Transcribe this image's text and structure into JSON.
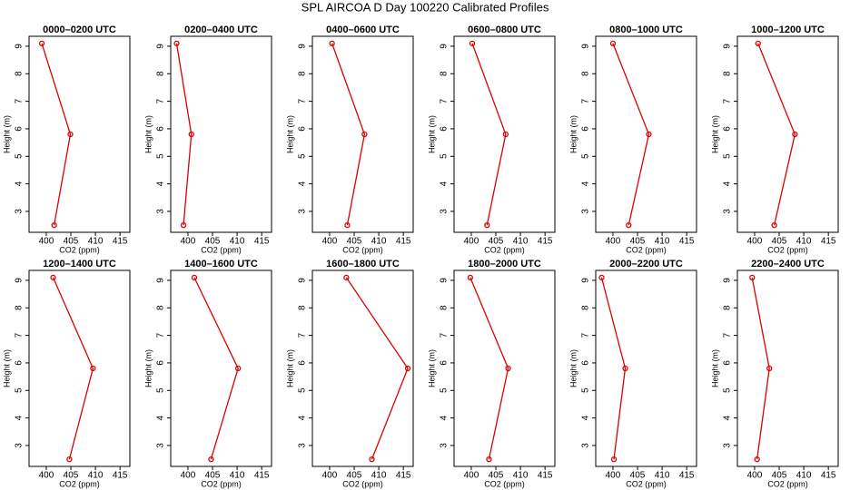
{
  "title": "SPL AIRCOA D  Day 100220  Calibrated Profiles",
  "chart_data": [
    {
      "type": "line",
      "title": "0000–0200 UTC",
      "xlabel": "CO2 (ppm)",
      "ylabel": "Height (m)",
      "color": "#dd0000",
      "x": [
        399.1,
        404.9,
        401.6
      ],
      "values": [
        9.1,
        5.8,
        2.5
      ],
      "xlim": [
        396.5,
        417
      ],
      "ylim": [
        2.24,
        9.36
      ],
      "xticks": [
        400,
        405,
        410,
        415
      ],
      "yticks": [
        3,
        4,
        5,
        6,
        7,
        8,
        9
      ]
    },
    {
      "type": "line",
      "title": "0200–0400 UTC",
      "xlabel": "CO2 (ppm)",
      "ylabel": "Height (m)",
      "color": "#dd0000",
      "x": [
        397.7,
        400.7,
        399.1
      ],
      "values": [
        9.1,
        5.8,
        2.5
      ],
      "xlim": [
        396.5,
        417
      ],
      "ylim": [
        2.24,
        9.36
      ],
      "xticks": [
        400,
        405,
        410,
        415
      ],
      "yticks": [
        3,
        4,
        5,
        6,
        7,
        8,
        9
      ]
    },
    {
      "type": "line",
      "title": "0400–0600 UTC",
      "xlabel": "CO2 (ppm)",
      "ylabel": "Height (m)",
      "color": "#dd0000",
      "x": [
        400.5,
        407.1,
        403.6
      ],
      "values": [
        9.1,
        5.8,
        2.5
      ],
      "xlim": [
        396.5,
        417
      ],
      "ylim": [
        2.24,
        9.36
      ],
      "xticks": [
        400,
        405,
        410,
        415
      ],
      "yticks": [
        3,
        4,
        5,
        6,
        7,
        8,
        9
      ]
    },
    {
      "type": "line",
      "title": "0600–0800 UTC",
      "xlabel": "CO2 (ppm)",
      "ylabel": "Height (m)",
      "color": "#dd0000",
      "x": [
        400.2,
        407.0,
        403.2
      ],
      "values": [
        9.1,
        5.8,
        2.5
      ],
      "xlim": [
        396.5,
        417
      ],
      "ylim": [
        2.24,
        9.36
      ],
      "xticks": [
        400,
        405,
        410,
        415
      ],
      "yticks": [
        3,
        4,
        5,
        6,
        7,
        8,
        9
      ]
    },
    {
      "type": "line",
      "title": "0800–1000 UTC",
      "xlabel": "CO2 (ppm)",
      "ylabel": "Height (m)",
      "color": "#dd0000",
      "x": [
        400.0,
        407.3,
        403.2
      ],
      "values": [
        9.1,
        5.8,
        2.5
      ],
      "xlim": [
        396.5,
        417
      ],
      "ylim": [
        2.24,
        9.36
      ],
      "xticks": [
        400,
        405,
        410,
        415
      ],
      "yticks": [
        3,
        4,
        5,
        6,
        7,
        8,
        9
      ]
    },
    {
      "type": "line",
      "title": "1000–1200 UTC",
      "xlabel": "CO2 (ppm)",
      "ylabel": "Height (m)",
      "color": "#dd0000",
      "x": [
        400.7,
        408.2,
        404.0
      ],
      "values": [
        9.1,
        5.8,
        2.5
      ],
      "xlim": [
        396.5,
        417
      ],
      "ylim": [
        2.24,
        9.36
      ],
      "xticks": [
        400,
        405,
        410,
        415
      ],
      "yticks": [
        3,
        4,
        5,
        6,
        7,
        8,
        9
      ]
    },
    {
      "type": "line",
      "title": "1200–1400 UTC",
      "xlabel": "CO2 (ppm)",
      "ylabel": "Height (m)",
      "color": "#dd0000",
      "x": [
        401.4,
        409.5,
        404.7
      ],
      "values": [
        9.1,
        5.8,
        2.5
      ],
      "xlim": [
        396.5,
        417
      ],
      "ylim": [
        2.24,
        9.36
      ],
      "xticks": [
        400,
        405,
        410,
        415
      ],
      "yticks": [
        3,
        4,
        5,
        6,
        7,
        8,
        9
      ]
    },
    {
      "type": "line",
      "title": "1400–1600 UTC",
      "xlabel": "CO2 (ppm)",
      "ylabel": "Height (m)",
      "color": "#dd0000",
      "x": [
        401.3,
        410.2,
        404.7
      ],
      "values": [
        9.1,
        5.8,
        2.5
      ],
      "xlim": [
        396.5,
        417
      ],
      "ylim": [
        2.24,
        9.36
      ],
      "xticks": [
        400,
        405,
        410,
        415
      ],
      "yticks": [
        3,
        4,
        5,
        6,
        7,
        8,
        9
      ]
    },
    {
      "type": "line",
      "title": "1600–1800 UTC",
      "xlabel": "CO2 (ppm)",
      "ylabel": "Height (m)",
      "color": "#dd0000",
      "x": [
        403.4,
        415.9,
        408.6
      ],
      "values": [
        9.1,
        5.8,
        2.5
      ],
      "xlim": [
        396.5,
        417
      ],
      "ylim": [
        2.24,
        9.36
      ],
      "xticks": [
        400,
        405,
        410,
        415
      ],
      "yticks": [
        3,
        4,
        5,
        6,
        7,
        8,
        9
      ]
    },
    {
      "type": "line",
      "title": "1800–2000 UTC",
      "xlabel": "CO2 (ppm)",
      "ylabel": "Height (m)",
      "color": "#dd0000",
      "x": [
        399.8,
        407.5,
        403.6
      ],
      "values": [
        9.1,
        5.8,
        2.5
      ],
      "xlim": [
        396.5,
        417
      ],
      "ylim": [
        2.24,
        9.36
      ],
      "xticks": [
        400,
        405,
        410,
        415
      ],
      "yticks": [
        3,
        4,
        5,
        6,
        7,
        8,
        9
      ]
    },
    {
      "type": "line",
      "title": "2000–2200 UTC",
      "xlabel": "CO2 (ppm)",
      "ylabel": "Height (m)",
      "color": "#dd0000",
      "x": [
        397.7,
        402.5,
        400.2
      ],
      "values": [
        9.1,
        5.8,
        2.5
      ],
      "xlim": [
        396.5,
        417
      ],
      "ylim": [
        2.24,
        9.36
      ],
      "xticks": [
        400,
        405,
        410,
        415
      ],
      "yticks": [
        3,
        4,
        5,
        6,
        7,
        8,
        9
      ]
    },
    {
      "type": "line",
      "title": "2200–2400 UTC",
      "xlabel": "CO2 (ppm)",
      "ylabel": "Height (m)",
      "color": "#dd0000",
      "x": [
        399.5,
        403.0,
        400.5
      ],
      "values": [
        9.1,
        5.8,
        2.5
      ],
      "xlim": [
        396.5,
        417
      ],
      "ylim": [
        2.24,
        9.36
      ],
      "xticks": [
        400,
        405,
        410,
        415
      ],
      "yticks": [
        3,
        4,
        5,
        6,
        7,
        8,
        9
      ]
    }
  ]
}
